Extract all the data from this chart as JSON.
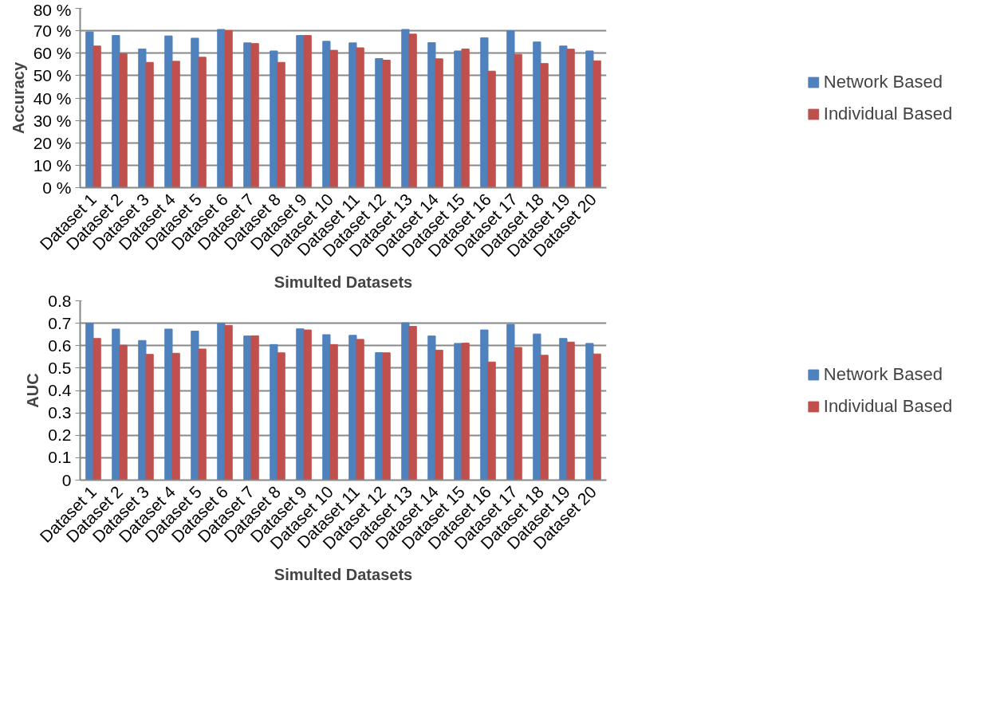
{
  "chart_data": [
    {
      "type": "bar",
      "xlabel": "Simulted Datasets",
      "ylabel": "Accuracy",
      "categories": [
        "Dataset 1",
        "Dataset 2",
        "Dataset 3",
        "Dataset 4",
        "Dataset 5",
        "Dataset 6",
        "Dataset 7",
        "Dataset 8",
        "Dataset 9",
        "Dataset 10",
        "Dataset 11",
        "Dataset 12",
        "Dataset 13",
        "Dataset 14",
        "Dataset 15",
        "Dataset 16",
        "Dataset 17",
        "Dataset 18",
        "Dataset 19",
        "Dataset 20"
      ],
      "series": [
        {
          "name": "Network Based",
          "color": "#4f81bd",
          "values": [
            69.5,
            67.9,
            61.9,
            67.7,
            66.7,
            70.6,
            64.6,
            61.0,
            67.9,
            65.3,
            64.6,
            57.6,
            70.6,
            64.7,
            61.0,
            66.9,
            70.0,
            65.0,
            63.2,
            61.0
          ]
        },
        {
          "name": "Individual Based",
          "color": "#c0504d",
          "values": [
            63.2,
            59.8,
            55.9,
            56.4,
            58.2,
            70.1,
            64.3,
            55.9,
            67.9,
            61.3,
            62.4,
            56.9,
            68.5,
            57.5,
            61.9,
            52.0,
            59.5,
            55.4,
            61.8,
            56.6
          ]
        }
      ],
      "ylim": [
        0,
        80
      ],
      "yticks": [
        {
          "value": 0,
          "label": "0 %"
        },
        {
          "value": 10,
          "label": "10 %"
        },
        {
          "value": 20,
          "label": "20 %"
        },
        {
          "value": 30,
          "label": "30 %"
        },
        {
          "value": 40,
          "label": "40 %"
        },
        {
          "value": 50,
          "label": "50 %"
        },
        {
          "value": 60,
          "label": "60 %"
        },
        {
          "value": 70,
          "label": "70 %"
        },
        {
          "value": 80,
          "label": "80 %"
        }
      ],
      "grid": "y",
      "legend": "right"
    },
    {
      "type": "bar",
      "xlabel": "Simulted Datasets",
      "ylabel": "AUC",
      "categories": [
        "Dataset 1",
        "Dataset 2",
        "Dataset 3",
        "Dataset 4",
        "Dataset 5",
        "Dataset 6",
        "Dataset 7",
        "Dataset 8",
        "Dataset 9",
        "Dataset 10",
        "Dataset 11",
        "Dataset 12",
        "Dataset 13",
        "Dataset 14",
        "Dataset 15",
        "Dataset 16",
        "Dataset 17",
        "Dataset 18",
        "Dataset 19",
        "Dataset 20"
      ],
      "series": [
        {
          "name": "Network Based",
          "color": "#4f81bd",
          "values": [
            0.7,
            0.674,
            0.623,
            0.674,
            0.665,
            0.7,
            0.643,
            0.605,
            0.675,
            0.649,
            0.646,
            0.569,
            0.702,
            0.643,
            0.61,
            0.67,
            0.695,
            0.652,
            0.632,
            0.61
          ]
        },
        {
          "name": "Individual Based",
          "color": "#c0504d",
          "values": [
            0.632,
            0.602,
            0.561,
            0.566,
            0.585,
            0.69,
            0.644,
            0.568,
            0.67,
            0.605,
            0.628,
            0.568,
            0.686,
            0.58,
            0.611,
            0.527,
            0.592,
            0.557,
            0.616,
            0.563
          ]
        }
      ],
      "ylim": [
        0,
        0.8
      ],
      "yticks": [
        0,
        {
          "value": 0.1,
          "label": "0.1"
        },
        {
          "value": 0.2,
          "label": "0.2"
        },
        {
          "value": 0.3,
          "label": "0.3"
        },
        {
          "value": 0.4,
          "label": "0.4"
        },
        {
          "value": 0.5,
          "label": "0.5"
        },
        {
          "value": 0.6,
          "label": "0.6"
        },
        {
          "value": 0.7,
          "label": "0.7"
        },
        {
          "value": 0.8,
          "label": "0.8"
        }
      ],
      "grid": "y",
      "legend": "right"
    }
  ]
}
